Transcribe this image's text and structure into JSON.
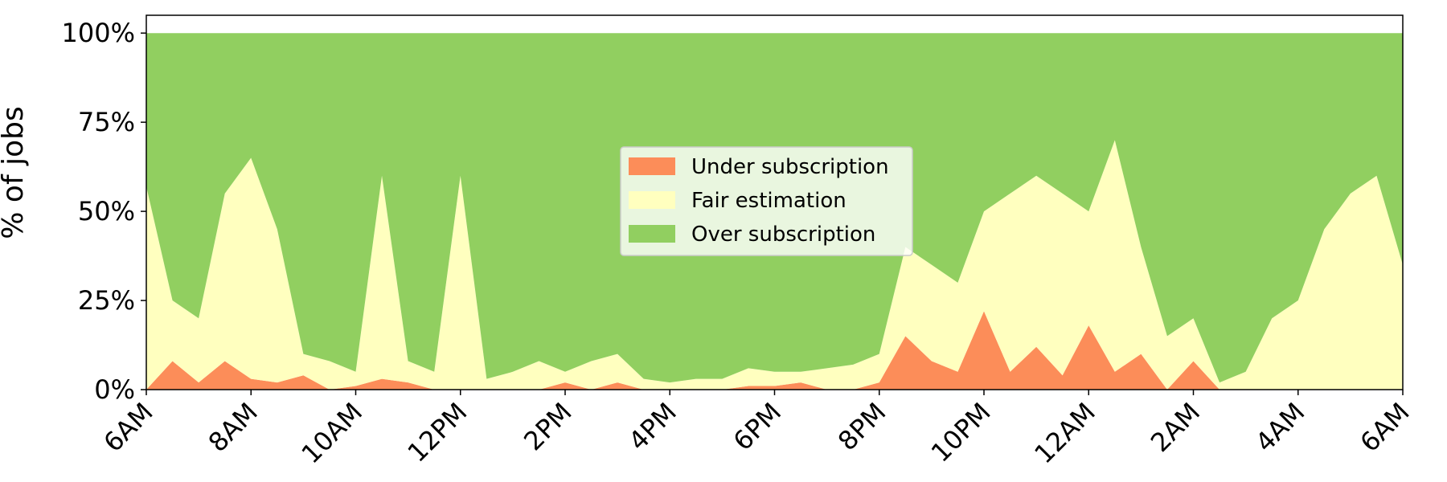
{
  "chart_data": {
    "type": "stacked_area",
    "ylabel": "% of jobs",
    "categories": [
      "6AM",
      null,
      null,
      null,
      "8AM",
      null,
      null,
      null,
      "10AM",
      null,
      null,
      null,
      "12PM",
      null,
      null,
      null,
      "2PM",
      null,
      null,
      null,
      "4PM",
      null,
      null,
      null,
      "6PM",
      null,
      null,
      null,
      "8PM",
      null,
      null,
      null,
      "10PM",
      null,
      null,
      null,
      "12AM",
      null,
      null,
      null,
      "2AM",
      null,
      null,
      null,
      "4AM",
      null,
      null,
      null,
      "6AM"
    ],
    "series": [
      {
        "name": "Under subscription",
        "color": "#fc8d59",
        "values": [
          0,
          8,
          2,
          8,
          3,
          2,
          4,
          0,
          1,
          3,
          2,
          0,
          0,
          0,
          0,
          0,
          2,
          0,
          2,
          0,
          0,
          0,
          0,
          1,
          1,
          2,
          0,
          0,
          2,
          15,
          8,
          5,
          22,
          5,
          12,
          4,
          18,
          5,
          10,
          0,
          8,
          0,
          0,
          0,
          0,
          0,
          0,
          0,
          0
        ]
      },
      {
        "name": "Fair estimation",
        "color": "#ffffbf",
        "values": [
          57,
          17,
          18,
          47,
          62,
          43,
          6,
          8,
          4,
          57,
          6,
          5,
          60,
          3,
          5,
          8,
          3,
          8,
          8,
          3,
          2,
          3,
          3,
          5,
          4,
          3,
          6,
          7,
          8,
          25,
          27,
          25,
          28,
          50,
          48,
          51,
          32,
          65,
          30,
          15,
          12,
          2,
          5,
          20,
          25,
          45,
          55,
          60,
          35
        ]
      },
      {
        "name": "Over subscription",
        "color": "#91cf60",
        "values": [
          43,
          75,
          80,
          45,
          35,
          55,
          90,
          92,
          95,
          40,
          92,
          95,
          40,
          97,
          95,
          92,
          95,
          92,
          90,
          97,
          98,
          97,
          97,
          94,
          95,
          95,
          94,
          93,
          90,
          60,
          65,
          70,
          50,
          45,
          40,
          45,
          50,
          30,
          60,
          85,
          80,
          98,
          95,
          80,
          75,
          55,
          45,
          40,
          65
        ]
      }
    ],
    "ylim": [
      0,
      105
    ],
    "yticks": [
      {
        "value": 0,
        "label": "0%"
      },
      {
        "value": 25,
        "label": "25%"
      },
      {
        "value": 50,
        "label": "50%"
      },
      {
        "value": 75,
        "label": "75%"
      },
      {
        "value": 100,
        "label": "100%"
      }
    ],
    "legend": "center"
  }
}
